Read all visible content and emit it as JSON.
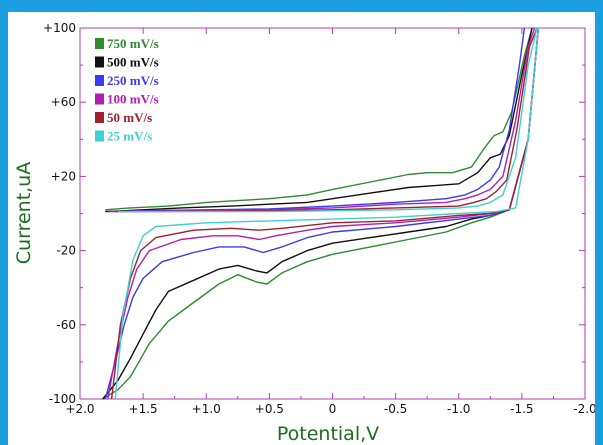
{
  "chart_data": {
    "type": "line",
    "xlabel": "Potential,V",
    "ylabel": "Current,uA",
    "x_ticks": [
      2.0,
      1.5,
      1.0,
      0.5,
      0.0,
      -0.5,
      -1.0,
      -1.5,
      -2.0
    ],
    "x_tick_labels": [
      "+2.0",
      "+1.5",
      "+1.0",
      "+0.5",
      "0",
      "-0.5",
      "-1.0",
      "-1.5",
      "-2.0"
    ],
    "y_ticks": [
      100,
      60,
      20,
      -20,
      -60,
      -100
    ],
    "y_tick_labels": [
      "+100",
      "+60",
      "+20",
      "-20",
      "-60",
      "-100"
    ],
    "xlim": [
      2.0,
      -2.0
    ],
    "ylim": [
      -100,
      100
    ],
    "grid": false,
    "legend_position": "top-left",
    "series": [
      {
        "name": "750 mV/s",
        "color": "#2e8b2e",
        "upper": [
          [
            1.8,
            2
          ],
          [
            1.6,
            3
          ],
          [
            1.3,
            4
          ],
          [
            1.0,
            6
          ],
          [
            0.5,
            8
          ],
          [
            0.2,
            10
          ],
          [
            0.0,
            13
          ],
          [
            -0.3,
            17
          ],
          [
            -0.6,
            21
          ],
          [
            -0.75,
            22
          ],
          [
            -0.95,
            22
          ],
          [
            -1.1,
            25
          ],
          [
            -1.2,
            35
          ],
          [
            -1.28,
            42
          ],
          [
            -1.35,
            44
          ],
          [
            -1.42,
            55
          ],
          [
            -1.52,
            85
          ],
          [
            -1.58,
            100
          ]
        ],
        "lower": [
          [
            1.82,
            -100
          ],
          [
            1.7,
            -95
          ],
          [
            1.6,
            -88
          ],
          [
            1.45,
            -70
          ],
          [
            1.3,
            -58
          ],
          [
            1.1,
            -48
          ],
          [
            0.9,
            -38
          ],
          [
            0.75,
            -33
          ],
          [
            0.6,
            -37
          ],
          [
            0.52,
            -38
          ],
          [
            0.4,
            -32
          ],
          [
            0.2,
            -26
          ],
          [
            0.0,
            -22
          ],
          [
            -0.3,
            -18
          ],
          [
            -0.6,
            -14
          ],
          [
            -0.9,
            -10
          ],
          [
            -1.1,
            -5
          ],
          [
            -1.25,
            -2
          ],
          [
            -1.4,
            2
          ],
          [
            -1.55,
            40
          ],
          [
            -1.63,
            100
          ]
        ]
      },
      {
        "name": "500 mV/s",
        "color": "#111111",
        "upper": [
          [
            1.8,
            1
          ],
          [
            1.5,
            2
          ],
          [
            1.2,
            3
          ],
          [
            0.8,
            4
          ],
          [
            0.5,
            5
          ],
          [
            0.2,
            6
          ],
          [
            0.0,
            8
          ],
          [
            -0.3,
            11
          ],
          [
            -0.6,
            14
          ],
          [
            -0.8,
            15
          ],
          [
            -1.0,
            16
          ],
          [
            -1.15,
            22
          ],
          [
            -1.25,
            30
          ],
          [
            -1.33,
            32
          ],
          [
            -1.4,
            42
          ],
          [
            -1.5,
            75
          ],
          [
            -1.58,
            100
          ]
        ],
        "lower": [
          [
            1.82,
            -100
          ],
          [
            1.7,
            -90
          ],
          [
            1.6,
            -78
          ],
          [
            1.5,
            -65
          ],
          [
            1.4,
            -52
          ],
          [
            1.3,
            -42
          ],
          [
            1.1,
            -36
          ],
          [
            0.9,
            -30
          ],
          [
            0.75,
            -28
          ],
          [
            0.6,
            -31
          ],
          [
            0.52,
            -32
          ],
          [
            0.4,
            -26
          ],
          [
            0.2,
            -20
          ],
          [
            0.0,
            -16
          ],
          [
            -0.3,
            -13
          ],
          [
            -0.6,
            -10
          ],
          [
            -0.9,
            -7
          ],
          [
            -1.1,
            -3
          ],
          [
            -1.25,
            -1
          ],
          [
            -1.4,
            2
          ],
          [
            -1.55,
            40
          ],
          [
            -1.63,
            100
          ]
        ]
      },
      {
        "name": "250 mV/s",
        "color": "#3a3af0",
        "upper": [
          [
            1.78,
            1
          ],
          [
            1.5,
            1.5
          ],
          [
            1.0,
            2
          ],
          [
            0.5,
            2.5
          ],
          [
            0.0,
            4
          ],
          [
            -0.5,
            6
          ],
          [
            -0.9,
            8
          ],
          [
            -1.05,
            10
          ],
          [
            -1.15,
            13
          ],
          [
            -1.25,
            18
          ],
          [
            -1.32,
            25
          ],
          [
            -1.4,
            45
          ],
          [
            -1.48,
            80
          ],
          [
            -1.52,
            100
          ]
        ],
        "lower": [
          [
            1.8,
            -100
          ],
          [
            1.72,
            -80
          ],
          [
            1.65,
            -60
          ],
          [
            1.58,
            -45
          ],
          [
            1.5,
            -35
          ],
          [
            1.35,
            -26
          ],
          [
            1.1,
            -21
          ],
          [
            0.9,
            -18
          ],
          [
            0.7,
            -18
          ],
          [
            0.55,
            -21
          ],
          [
            0.4,
            -18
          ],
          [
            0.2,
            -13
          ],
          [
            0.0,
            -10
          ],
          [
            -0.5,
            -7
          ],
          [
            -1.0,
            -3
          ],
          [
            -1.25,
            -1
          ],
          [
            -1.4,
            2
          ],
          [
            -1.55,
            40
          ],
          [
            -1.63,
            100
          ]
        ]
      },
      {
        "name": "100 mV/s",
        "color": "#b020b0",
        "upper": [
          [
            1.75,
            1
          ],
          [
            1.5,
            1.2
          ],
          [
            1.0,
            1.5
          ],
          [
            0.5,
            2
          ],
          [
            0.0,
            3
          ],
          [
            -0.5,
            5
          ],
          [
            -0.9,
            6
          ],
          [
            -1.05,
            8
          ],
          [
            -1.15,
            10
          ],
          [
            -1.25,
            13
          ],
          [
            -1.35,
            20
          ],
          [
            -1.45,
            50
          ],
          [
            -1.55,
            90
          ],
          [
            -1.6,
            100
          ]
        ],
        "lower": [
          [
            1.78,
            -100
          ],
          [
            1.7,
            -70
          ],
          [
            1.62,
            -45
          ],
          [
            1.55,
            -30
          ],
          [
            1.45,
            -20
          ],
          [
            1.2,
            -14
          ],
          [
            0.95,
            -12
          ],
          [
            0.75,
            -12
          ],
          [
            0.58,
            -14
          ],
          [
            0.45,
            -12
          ],
          [
            0.2,
            -9
          ],
          [
            0.0,
            -7
          ],
          [
            -0.5,
            -5
          ],
          [
            -1.0,
            -2
          ],
          [
            -1.25,
            0
          ],
          [
            -1.4,
            2
          ],
          [
            -1.55,
            40
          ],
          [
            -1.63,
            100
          ]
        ]
      },
      {
        "name": "50 mV/s",
        "color": "#a02030",
        "upper": [
          [
            1.72,
            1
          ],
          [
            1.5,
            1
          ],
          [
            1.0,
            1.2
          ],
          [
            0.5,
            1.5
          ],
          [
            0.0,
            2
          ],
          [
            -0.5,
            3
          ],
          [
            -1.0,
            4
          ],
          [
            -1.12,
            6
          ],
          [
            -1.22,
            8
          ],
          [
            -1.3,
            12
          ],
          [
            -1.38,
            18
          ],
          [
            -1.46,
            45
          ],
          [
            -1.56,
            90
          ],
          [
            -1.62,
            100
          ]
        ],
        "lower": [
          [
            1.75,
            -100
          ],
          [
            1.68,
            -60
          ],
          [
            1.6,
            -35
          ],
          [
            1.52,
            -20
          ],
          [
            1.4,
            -13
          ],
          [
            1.1,
            -9
          ],
          [
            0.8,
            -8
          ],
          [
            0.58,
            -9
          ],
          [
            0.4,
            -8
          ],
          [
            0.0,
            -5
          ],
          [
            -0.5,
            -4
          ],
          [
            -1.0,
            -1
          ],
          [
            -1.25,
            0
          ],
          [
            -1.4,
            2
          ],
          [
            -1.55,
            40
          ],
          [
            -1.63,
            100
          ]
        ]
      },
      {
        "name": "25 mV/s",
        "color": "#40d0d0",
        "upper": [
          [
            1.7,
            1
          ],
          [
            1.5,
            1
          ],
          [
            1.0,
            1
          ],
          [
            0.5,
            1
          ],
          [
            0.0,
            1.5
          ],
          [
            -0.5,
            2
          ],
          [
            -1.0,
            3
          ],
          [
            -1.15,
            4
          ],
          [
            -1.25,
            6
          ],
          [
            -1.35,
            10
          ],
          [
            -1.45,
            30
          ],
          [
            -1.55,
            80
          ],
          [
            -1.62,
            100
          ]
        ],
        "lower": [
          [
            1.72,
            -100
          ],
          [
            1.66,
            -55
          ],
          [
            1.58,
            -25
          ],
          [
            1.5,
            -12
          ],
          [
            1.4,
            -7
          ],
          [
            1.0,
            -5
          ],
          [
            0.5,
            -4
          ],
          [
            0.0,
            -3
          ],
          [
            -0.5,
            -2
          ],
          [
            -1.0,
            0
          ],
          [
            -1.3,
            1
          ],
          [
            -1.45,
            3
          ],
          [
            -1.55,
            40
          ],
          [
            -1.63,
            100
          ]
        ]
      }
    ]
  }
}
